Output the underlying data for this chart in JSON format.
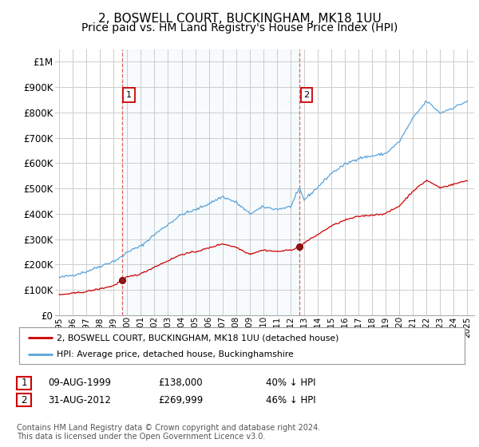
{
  "title": "2, BOSWELL COURT, BUCKINGHAM, MK18 1UU",
  "subtitle": "Price paid vs. HM Land Registry's House Price Index (HPI)",
  "title_fontsize": 11,
  "subtitle_fontsize": 10,
  "ylabel_ticks": [
    "£0",
    "£100K",
    "£200K",
    "£300K",
    "£400K",
    "£500K",
    "£600K",
    "£700K",
    "£800K",
    "£900K",
    "£1M"
  ],
  "ytick_values": [
    0,
    100000,
    200000,
    300000,
    400000,
    500000,
    600000,
    700000,
    800000,
    900000,
    1000000
  ],
  "ylim": [
    0,
    1050000
  ],
  "xlim_start": 1994.7,
  "xlim_end": 2025.5,
  "hpi_color": "#5ba3d9",
  "hpi_fill_color": "#d6eaf8",
  "sale_color": "#cc0000",
  "grid_color": "#cccccc",
  "bg_color": "#ffffff",
  "sale1_x": 1999.62,
  "sale1_y": 138000,
  "sale2_x": 2012.67,
  "sale2_y": 269999,
  "legend_entries": [
    "2, BOSWELL COURT, BUCKINGHAM, MK18 1UU (detached house)",
    "HPI: Average price, detached house, Buckinghamshire"
  ],
  "table_rows": [
    [
      "1",
      "09-AUG-1999",
      "£138,000",
      "40% ↓ HPI"
    ],
    [
      "2",
      "31-AUG-2012",
      "£269,999",
      "46% ↓ HPI"
    ]
  ],
  "footnote": "Contains HM Land Registry data © Crown copyright and database right 2024.\nThis data is licensed under the Open Government Licence v3.0.",
  "xtick_years": [
    1995,
    1996,
    1997,
    1998,
    1999,
    2000,
    2001,
    2002,
    2003,
    2004,
    2005,
    2006,
    2007,
    2008,
    2009,
    2010,
    2011,
    2012,
    2013,
    2014,
    2015,
    2016,
    2017,
    2018,
    2019,
    2020,
    2021,
    2022,
    2023,
    2024,
    2025
  ],
  "hpi_anchors": {
    "1995": 148000,
    "1996": 158000,
    "1997": 172000,
    "1998": 193000,
    "1999": 213000,
    "1999.62": 230000,
    "2000": 250000,
    "2001": 272000,
    "2002": 318000,
    "2003": 358000,
    "2004": 398000,
    "2005": 415000,
    "2006": 440000,
    "2007": 468000,
    "2008": 445000,
    "2009": 400000,
    "2010": 427000,
    "2011": 418000,
    "2012": 428000,
    "2012.67": 500000,
    "2013": 455000,
    "2014": 505000,
    "2015": 560000,
    "2016": 595000,
    "2017": 620000,
    "2018": 628000,
    "2019": 638000,
    "2020": 685000,
    "2021": 778000,
    "2022": 845000,
    "2023": 798000,
    "2024": 820000,
    "2025": 845000
  },
  "red_anchors_pre_sale2": {
    "1995": 80000,
    "1996": 86000,
    "1997": 93000,
    "1998": 104000,
    "1999": 116000,
    "1999.62": 138000,
    "2000": 150000,
    "2001": 163000,
    "2002": 190000,
    "2003": 215000,
    "2004": 240000,
    "2005": 250000,
    "2006": 265000,
    "2007": 282000,
    "2008": 268000,
    "2009": 241000,
    "2010": 257000,
    "2011": 251000,
    "2012": 257000,
    "2012.67": 269999
  },
  "red_anchors_post_sale2": {
    "2012.67": 269999,
    "2013": 285000,
    "2014": 318000,
    "2015": 352000,
    "2016": 375000,
    "2017": 390000,
    "2018": 395000,
    "2019": 401000,
    "2020": 431000,
    "2021": 490000,
    "2022": 532000,
    "2023": 503000,
    "2024": 517000,
    "2025": 532000
  }
}
